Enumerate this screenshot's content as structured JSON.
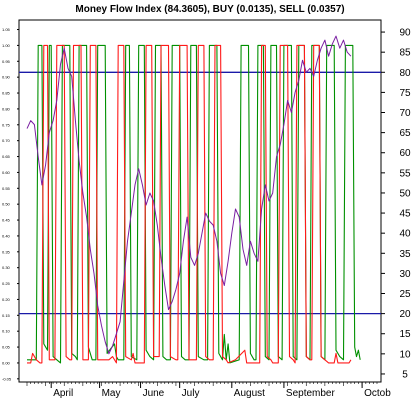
{
  "colors": {
    "mfi": "#7a1fa2",
    "buy": "#009000",
    "sell": "#ff1a1a",
    "threshold": "#1a1aa8",
    "axis": "#000000"
  },
  "chart_data": {
    "type": "line",
    "title": "Money Flow Index (84.3605), BUY (0.0135), SELL (0.0357)",
    "xlabel": "",
    "ylabel": "",
    "x_tick_labels": [
      "April",
      "May",
      "June",
      "July",
      "August",
      "September",
      "Octob"
    ],
    "y_right_ticks": [
      90,
      85,
      80,
      75,
      70,
      65,
      60,
      55,
      50,
      45,
      40,
      35,
      30,
      25,
      20,
      15,
      10,
      5
    ],
    "y_left_ticks": [
      "1.05",
      "1.00",
      "0.95",
      "0.90",
      "0.85",
      "0.80",
      "0.75",
      "0.70",
      "0.65",
      "0.60",
      "0.55",
      "0.50",
      "0.45",
      "0.40",
      "0.35",
      "0.30",
      "0.25",
      "0.20",
      "0.15",
      "0.10",
      "0.05",
      "0.00",
      "-0.05"
    ],
    "ylim_right": [
      3,
      93
    ],
    "ylim_left": [
      -0.06,
      1.08
    ],
    "thresholds": [
      80,
      20
    ],
    "x_range": [
      0,
      188
    ],
    "series": [
      {
        "name": "",
        "axis": "right",
        "points": [
          [
            0,
            66
          ],
          [
            2,
            68
          ],
          [
            4,
            67
          ],
          [
            6,
            59
          ],
          [
            8,
            52
          ],
          [
            10,
            57
          ],
          [
            12,
            65
          ],
          [
            14,
            68
          ],
          [
            16,
            73
          ],
          [
            18,
            82
          ],
          [
            20,
            86
          ],
          [
            22,
            81
          ],
          [
            24,
            79
          ],
          [
            26,
            68
          ],
          [
            28,
            58
          ],
          [
            30,
            50
          ],
          [
            32,
            44
          ],
          [
            34,
            36
          ],
          [
            36,
            30
          ],
          [
            38,
            22
          ],
          [
            40,
            17
          ],
          [
            42,
            13
          ],
          [
            44,
            10
          ],
          [
            46,
            12
          ],
          [
            48,
            15
          ],
          [
            50,
            18
          ],
          [
            52,
            28
          ],
          [
            54,
            38
          ],
          [
            56,
            45
          ],
          [
            58,
            52
          ],
          [
            60,
            56
          ],
          [
            62,
            52
          ],
          [
            64,
            47
          ],
          [
            66,
            50
          ],
          [
            68,
            48
          ],
          [
            70,
            42
          ],
          [
            72,
            34
          ],
          [
            74,
            27
          ],
          [
            76,
            21
          ],
          [
            78,
            23
          ],
          [
            80,
            26
          ],
          [
            82,
            30
          ],
          [
            84,
            38
          ],
          [
            86,
            44
          ],
          [
            88,
            34
          ],
          [
            90,
            32
          ],
          [
            92,
            35
          ],
          [
            94,
            40
          ],
          [
            96,
            45
          ],
          [
            98,
            43
          ],
          [
            100,
            42
          ],
          [
            102,
            38
          ],
          [
            104,
            30
          ],
          [
            106,
            27
          ],
          [
            108,
            33
          ],
          [
            110,
            40
          ],
          [
            112,
            46
          ],
          [
            114,
            44
          ],
          [
            116,
            36
          ],
          [
            118,
            32
          ],
          [
            120,
            38
          ],
          [
            122,
            35
          ],
          [
            124,
            33
          ],
          [
            126,
            46
          ],
          [
            128,
            52
          ],
          [
            130,
            48
          ],
          [
            132,
            50
          ],
          [
            134,
            59
          ],
          [
            136,
            62
          ],
          [
            138,
            67
          ],
          [
            140,
            73
          ],
          [
            142,
            70
          ],
          [
            144,
            75
          ],
          [
            146,
            78
          ],
          [
            148,
            83
          ],
          [
            150,
            80
          ],
          [
            152,
            81
          ],
          [
            154,
            79
          ],
          [
            156,
            83
          ],
          [
            158,
            86
          ],
          [
            160,
            88
          ],
          [
            162,
            84
          ],
          [
            164,
            87
          ],
          [
            166,
            89
          ],
          [
            168,
            86
          ],
          [
            170,
            88
          ],
          [
            172,
            85
          ],
          [
            174,
            84
          ]
        ]
      },
      {
        "name": "",
        "axis": "left",
        "points": [
          [
            0,
            0.0
          ],
          [
            2,
            0.0
          ],
          [
            3,
            0.03
          ],
          [
            5,
            0.01
          ],
          [
            7,
            0.0
          ],
          [
            8,
            0.0
          ],
          [
            9,
            1.0
          ],
          [
            11,
            1.0
          ],
          [
            12,
            0.01
          ],
          [
            14,
            0.01
          ],
          [
            15,
            0.01
          ],
          [
            16,
            1.0
          ],
          [
            20,
            1.0
          ],
          [
            21,
            0.02
          ],
          [
            23,
            0.01
          ],
          [
            24,
            0.01
          ],
          [
            25,
            1.0
          ],
          [
            29,
            1.0
          ],
          [
            30,
            0.01
          ],
          [
            32,
            0.01
          ],
          [
            33,
            0.01
          ],
          [
            34,
            1.0
          ],
          [
            37,
            1.0
          ],
          [
            38,
            0.01
          ],
          [
            40,
            0.01
          ],
          [
            44,
            0.01
          ],
          [
            46,
            0.02
          ],
          [
            48,
            0.0
          ],
          [
            49,
            1.0
          ],
          [
            52,
            1.0
          ],
          [
            53,
            0.02
          ],
          [
            56,
            0.01
          ],
          [
            57,
            0.03
          ],
          [
            58,
            0.0
          ],
          [
            63,
            0.0
          ],
          [
            64,
            1.0
          ],
          [
            67,
            1.0
          ],
          [
            68,
            0.02
          ],
          [
            71,
            0.02
          ],
          [
            72,
            1.0
          ],
          [
            76,
            1.0
          ],
          [
            77,
            0.02
          ],
          [
            80,
            0.01
          ],
          [
            81,
            0.01
          ],
          [
            82,
            1.0
          ],
          [
            86,
            1.0
          ],
          [
            87,
            0.01
          ],
          [
            90,
            0.01
          ],
          [
            91,
            0.01
          ],
          [
            92,
            1.0
          ],
          [
            95,
            1.0
          ],
          [
            96,
            0.02
          ],
          [
            98,
            0.01
          ],
          [
            100,
            0.01
          ],
          [
            101,
            1.0
          ],
          [
            104,
            1.0
          ],
          [
            105,
            0.02
          ],
          [
            107,
            0.01
          ],
          [
            108,
            0.0
          ],
          [
            112,
            0.01
          ],
          [
            117,
            0.04
          ],
          [
            118,
            0.0
          ],
          [
            125,
            0.0
          ],
          [
            126,
            1.0
          ],
          [
            128,
            1.0
          ],
          [
            129,
            0.02
          ],
          [
            131,
            0.01
          ],
          [
            132,
            0.0
          ],
          [
            135,
            0.0
          ],
          [
            136,
            1.0
          ],
          [
            140,
            1.0
          ],
          [
            141,
            0.02
          ],
          [
            143,
            0.01
          ],
          [
            144,
            0.0
          ],
          [
            145,
            1.0
          ],
          [
            149,
            1.0
          ],
          [
            150,
            0.02
          ],
          [
            152,
            0.01
          ],
          [
            153,
            0.01
          ],
          [
            154,
            1.0
          ],
          [
            157,
            1.0
          ],
          [
            158,
            0.02
          ],
          [
            160,
            0.01
          ],
          [
            162,
            0.0
          ],
          [
            165,
            0.0
          ],
          [
            166,
            0.03
          ],
          [
            167,
            0.0
          ],
          [
            172,
            0.0
          ],
          [
            173,
            0.0
          ],
          [
            174,
            0.01
          ]
        ]
      },
      {
        "name": "",
        "axis": "left",
        "points": [
          [
            0,
            0.01
          ],
          [
            5,
            0.01
          ],
          [
            6,
            1.0
          ],
          [
            8,
            1.0
          ],
          [
            9,
            0.06
          ],
          [
            11,
            0.04
          ],
          [
            12,
            1.0
          ],
          [
            13,
            1.0
          ],
          [
            14,
            0.02
          ],
          [
            16,
            0.01
          ],
          [
            18,
            0.0
          ],
          [
            19,
            1.0
          ],
          [
            23,
            1.0
          ],
          [
            24,
            0.03
          ],
          [
            26,
            0.02
          ],
          [
            27,
            0.01
          ],
          [
            28,
            1.0
          ],
          [
            32,
            1.0
          ],
          [
            33,
            0.05
          ],
          [
            35,
            0.01
          ],
          [
            37,
            0.01
          ],
          [
            38,
            1.0
          ],
          [
            42,
            1.0
          ],
          [
            43,
            0.03
          ],
          [
            47,
            0.06
          ],
          [
            48,
            0.02
          ],
          [
            49,
            0.01
          ],
          [
            52,
            0.01
          ],
          [
            53,
            1.0
          ],
          [
            55,
            1.0
          ],
          [
            56,
            0.02
          ],
          [
            59,
            0.01
          ],
          [
            60,
            1.0
          ],
          [
            63,
            1.0
          ],
          [
            64,
            0.04
          ],
          [
            66,
            0.02
          ],
          [
            68,
            0.01
          ],
          [
            69,
            1.0
          ],
          [
            72,
            1.0
          ],
          [
            73,
            0.02
          ],
          [
            75,
            0.01
          ],
          [
            77,
            0.01
          ],
          [
            78,
            1.0
          ],
          [
            82,
            1.0
          ],
          [
            83,
            0.02
          ],
          [
            85,
            0.01
          ],
          [
            87,
            0.01
          ],
          [
            88,
            1.0
          ],
          [
            91,
            1.0
          ],
          [
            92,
            0.02
          ],
          [
            95,
            0.01
          ],
          [
            97,
            0.01
          ],
          [
            98,
            1.0
          ],
          [
            102,
            1.0
          ],
          [
            103,
            0.03
          ],
          [
            105,
            0.01
          ],
          [
            106,
            0.09
          ],
          [
            107,
            0.01
          ],
          [
            108,
            0.06
          ],
          [
            109,
            0.0
          ],
          [
            114,
            0.01
          ],
          [
            115,
            1.0
          ],
          [
            119,
            1.0
          ],
          [
            120,
            0.03
          ],
          [
            122,
            0.01
          ],
          [
            123,
            0.01
          ],
          [
            124,
            1.0
          ],
          [
            127,
            1.0
          ],
          [
            128,
            0.02
          ],
          [
            130,
            0.01
          ],
          [
            131,
            1.0
          ],
          [
            134,
            1.0
          ],
          [
            135,
            0.02
          ],
          [
            137,
            0.01
          ],
          [
            138,
            1.0
          ],
          [
            142,
            1.0
          ],
          [
            143,
            0.02
          ],
          [
            145,
            0.01
          ],
          [
            146,
            1.0
          ],
          [
            149,
            1.0
          ],
          [
            150,
            0.02
          ],
          [
            152,
            0.01
          ],
          [
            153,
            1.0
          ],
          [
            157,
            1.0
          ],
          [
            158,
            0.02
          ],
          [
            160,
            0.01
          ],
          [
            161,
            1.0
          ],
          [
            165,
            1.0
          ],
          [
            166,
            0.04
          ],
          [
            168,
            0.02
          ],
          [
            170,
            0.01
          ],
          [
            171,
            1.0
          ],
          [
            175,
            1.0
          ],
          [
            176,
            0.05
          ],
          [
            177,
            0.02
          ],
          [
            178,
            0.04
          ],
          [
            179,
            0.01
          ]
        ]
      }
    ]
  }
}
